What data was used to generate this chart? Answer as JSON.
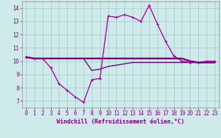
{
  "xlabel": "Windchill (Refroidissement éolien,°C)",
  "background_color": "#ceeaea",
  "grid_color": "#aacccc",
  "line_color_main": "#800080",
  "line_color_wave": "#aa00aa",
  "line_color_low": "#660066",
  "xlim": [
    -0.5,
    23.5
  ],
  "ylim": [
    6.5,
    14.5
  ],
  "yticks": [
    7,
    8,
    9,
    10,
    11,
    12,
    13,
    14
  ],
  "xticks": [
    0,
    1,
    2,
    3,
    4,
    5,
    6,
    7,
    8,
    9,
    10,
    11,
    12,
    13,
    14,
    15,
    16,
    17,
    18,
    19,
    20,
    21,
    22,
    23
  ],
  "line_wave_x": [
    0,
    1,
    2,
    3,
    4,
    5,
    6,
    7,
    8,
    9,
    10,
    11,
    12,
    13,
    14,
    15,
    16,
    17,
    18,
    19,
    20,
    21,
    22,
    23
  ],
  "line_wave_y": [
    10.3,
    10.2,
    10.2,
    9.5,
    8.3,
    7.8,
    7.3,
    6.9,
    8.6,
    8.7,
    13.4,
    13.3,
    13.5,
    13.3,
    13.0,
    14.2,
    12.8,
    11.5,
    10.4,
    10.0,
    9.9,
    9.9,
    10.0,
    10.0
  ],
  "line_flat_x": [
    0,
    1,
    2,
    3,
    4,
    5,
    6,
    7,
    8,
    9,
    10,
    11,
    12,
    13,
    14,
    15,
    16,
    17,
    18,
    19,
    20,
    21,
    22,
    23
  ],
  "line_flat_y": [
    10.3,
    10.2,
    10.2,
    10.2,
    10.2,
    10.2,
    10.2,
    10.2,
    10.2,
    10.2,
    10.2,
    10.2,
    10.2,
    10.2,
    10.2,
    10.2,
    10.2,
    10.2,
    10.2,
    10.2,
    10.0,
    9.9,
    9.9,
    9.9
  ],
  "line_low_x": [
    0,
    1,
    2,
    3,
    4,
    5,
    6,
    7,
    8,
    9,
    10,
    11,
    12,
    13,
    14,
    15,
    16,
    17,
    18,
    19,
    20,
    21,
    22,
    23
  ],
  "line_low_y": [
    10.3,
    10.2,
    10.2,
    10.2,
    10.2,
    10.2,
    10.2,
    10.2,
    9.3,
    9.4,
    9.6,
    9.7,
    9.8,
    9.9,
    9.9,
    9.9,
    9.9,
    9.9,
    9.9,
    9.9,
    9.9,
    9.9,
    9.9,
    9.9
  ],
  "tick_color": "#800080",
  "label_color": "#800080",
  "xlabel_fontsize": 6.0,
  "tick_fontsize": 5.5,
  "linewidth": 1.0,
  "marker": "+",
  "markersize": 3.5
}
